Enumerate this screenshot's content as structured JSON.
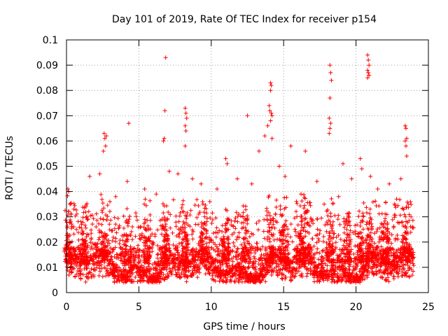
{
  "chart_data": {
    "type": "scatter",
    "title": "Day 101 of 2019, Rate Of TEC Index for receiver p154",
    "xlabel": "GPS time / hours",
    "ylabel": "ROTI / TECUs",
    "xlim": [
      0,
      25
    ],
    "ylim": [
      0,
      0.1
    ],
    "x_ticks": [
      0,
      5,
      10,
      15,
      20,
      25
    ],
    "x_tick_labels": [
      "0",
      "5",
      "10",
      "15",
      "20",
      "25"
    ],
    "y_ticks": [
      0,
      0.01,
      0.02,
      0.03,
      0.04,
      0.05,
      0.06,
      0.07,
      0.08,
      0.09,
      0.1
    ],
    "y_tick_labels": [
      "0",
      "0.01",
      "0.02",
      "0.03",
      "0.04",
      "0.05",
      "0.06",
      "0.07",
      "0.08",
      "0.09",
      "0.1"
    ],
    "grid": true,
    "marker": "+",
    "color": "#ff0000",
    "series": [
      {
        "name": "ROTI p154",
        "note": "dense band of points ~0.005-0.03 TECU across 0-24 h; listed points are the visible outliers",
        "points": [
          [
            0.1,
            0.041
          ],
          [
            0.15,
            0.04
          ],
          [
            0.3,
            0.028
          ],
          [
            2.6,
            0.063
          ],
          [
            2.65,
            0.061
          ],
          [
            2.7,
            0.058
          ],
          [
            2.75,
            0.062
          ],
          [
            2.55,
            0.056
          ],
          [
            4.3,
            0.067
          ],
          [
            6.85,
            0.093
          ],
          [
            6.8,
            0.072
          ],
          [
            6.75,
            0.061
          ],
          [
            6.7,
            0.06
          ],
          [
            8.2,
            0.073
          ],
          [
            8.25,
            0.071
          ],
          [
            8.3,
            0.069
          ],
          [
            8.2,
            0.066
          ],
          [
            8.25,
            0.064
          ],
          [
            8.2,
            0.058
          ],
          [
            12.5,
            0.07
          ],
          [
            14.1,
            0.083
          ],
          [
            14.15,
            0.082
          ],
          [
            14.1,
            0.08
          ],
          [
            14.0,
            0.074
          ],
          [
            14.05,
            0.072
          ],
          [
            14.15,
            0.071
          ],
          [
            14.2,
            0.07
          ],
          [
            14.1,
            0.068
          ],
          [
            13.9,
            0.066
          ],
          [
            13.7,
            0.062
          ],
          [
            14.2,
            0.061
          ],
          [
            15.5,
            0.058
          ],
          [
            16.5,
            0.056
          ],
          [
            18.2,
            0.09
          ],
          [
            18.25,
            0.087
          ],
          [
            18.3,
            0.084
          ],
          [
            18.2,
            0.077
          ],
          [
            18.15,
            0.069
          ],
          [
            18.25,
            0.067
          ],
          [
            18.2,
            0.065
          ],
          [
            18.15,
            0.063
          ],
          [
            20.8,
            0.094
          ],
          [
            20.85,
            0.092
          ],
          [
            20.9,
            0.09
          ],
          [
            20.8,
            0.088
          ],
          [
            20.85,
            0.087
          ],
          [
            20.9,
            0.086
          ],
          [
            20.8,
            0.085
          ],
          [
            23.4,
            0.066
          ],
          [
            23.45,
            0.065
          ],
          [
            23.5,
            0.061
          ],
          [
            23.4,
            0.06
          ],
          [
            23.45,
            0.058
          ],
          [
            23.5,
            0.054
          ],
          [
            19.1,
            0.051
          ],
          [
            20.3,
            0.053
          ],
          [
            20.4,
            0.049
          ],
          [
            11.0,
            0.053
          ],
          [
            11.1,
            0.051
          ],
          [
            13.3,
            0.056
          ],
          [
            14.7,
            0.05
          ],
          [
            1.6,
            0.046
          ],
          [
            2.3,
            0.047
          ],
          [
            4.2,
            0.044
          ],
          [
            7.7,
            0.047
          ],
          [
            8.7,
            0.045
          ],
          [
            9.3,
            0.043
          ],
          [
            11.8,
            0.045
          ],
          [
            15.1,
            0.046
          ],
          [
            17.3,
            0.044
          ],
          [
            19.7,
            0.045
          ],
          [
            21.5,
            0.041
          ],
          [
            22.3,
            0.043
          ],
          [
            23.1,
            0.045
          ],
          [
            5.4,
            0.041
          ],
          [
            12.8,
            0.043
          ],
          [
            16.2,
            0.039
          ],
          [
            3.4,
            0.038
          ],
          [
            10.4,
            0.041
          ],
          [
            21.0,
            0.046
          ],
          [
            22.8,
            0.037
          ],
          [
            23.8,
            0.03
          ],
          [
            0.5,
            0.026
          ],
          [
            6.2,
            0.039
          ],
          [
            17.8,
            0.035
          ],
          [
            9.9,
            0.036
          ],
          [
            3.0,
            0.036
          ],
          [
            18.8,
            0.038
          ],
          [
            7.1,
            0.048
          ]
        ]
      }
    ]
  }
}
